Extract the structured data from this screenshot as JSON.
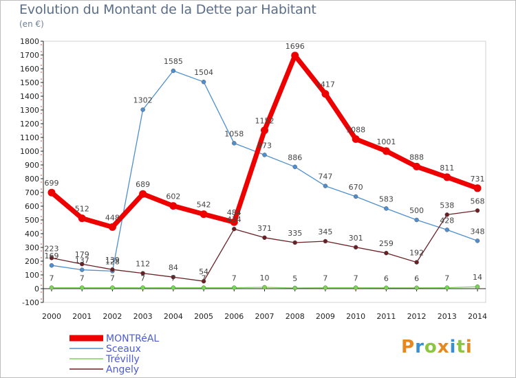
{
  "page": {
    "title": "Evolution du Montant de la Dette par Habitant",
    "unit": "(en €)",
    "logo": {
      "text": "Proxiti",
      "colors": [
        "#e8871e",
        "#3a8fd0",
        "#8cc63f",
        "#e8871e",
        "#3a8fd0",
        "#8cc63f",
        "#e8871e"
      ]
    }
  },
  "chart_data": {
    "type": "line",
    "title": "Evolution du Montant de la Dette par Habitant",
    "subtitle": "(en €)",
    "x": [
      "2000",
      "2001",
      "2002",
      "2003",
      "2004",
      "2005",
      "2006",
      "2007",
      "2008",
      "2009",
      "2010",
      "2011",
      "2012",
      "2013",
      "2014"
    ],
    "ylim": [
      -100,
      1800
    ],
    "yticks": [
      -100,
      0,
      100,
      200,
      300,
      400,
      500,
      600,
      700,
      800,
      900,
      1000,
      1100,
      1200,
      1300,
      1400,
      1500,
      1600,
      1700,
      1800
    ],
    "grid": false,
    "legend_position": "bottom-left",
    "series": [
      {
        "name": "MONTRéAL",
        "color": "#ee0000",
        "values": [
          699,
          512,
          448,
          689,
          602,
          542,
          484,
          1152,
          1696,
          1417,
          1088,
          1001,
          888,
          811,
          731
        ]
      },
      {
        "name": "Sceaux",
        "color": "#4f8fcf",
        "values": [
          169,
          137,
          128,
          1302,
          1585,
          1504,
          1058,
          973,
          886,
          747,
          670,
          583,
          500,
          428,
          348
        ]
      },
      {
        "name": "Trévilly",
        "color": "#7fd35a",
        "values": [
          7,
          7,
          7,
          7,
          7,
          7,
          7,
          10,
          5,
          7,
          7,
          6,
          6,
          7,
          14
        ]
      },
      {
        "name": "Angely",
        "color": "#6b1f24",
        "values": [
          223,
          179,
          139,
          112,
          84,
          54,
          434,
          371,
          335,
          345,
          301,
          259,
          192,
          538,
          568
        ]
      }
    ]
  }
}
